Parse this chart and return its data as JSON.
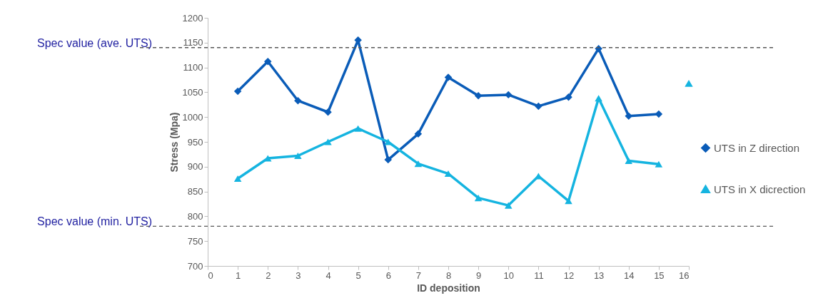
{
  "chart_data": {
    "type": "line",
    "xlabel": "ID deposition",
    "ylabel": "Stress (Mpa)",
    "xlim": [
      0,
      16
    ],
    "xticks": [
      0,
      1,
      2,
      3,
      4,
      5,
      6,
      7,
      8,
      9,
      10,
      11,
      12,
      13,
      14,
      15,
      16
    ],
    "ylim": [
      700,
      1200
    ],
    "yticks": [
      700,
      750,
      800,
      850,
      900,
      950,
      1000,
      1050,
      1100,
      1150,
      1200
    ],
    "grid": false,
    "legend": "right",
    "series": [
      {
        "name": "UTS  in Z direction",
        "color": "#0a5cb8",
        "marker": "diamond",
        "x": [
          1,
          2,
          3,
          4,
          5,
          6,
          7,
          8,
          9,
          10,
          11,
          12,
          13,
          14,
          15
        ],
        "values": [
          1052,
          1112,
          1033,
          1010,
          1155,
          914,
          966,
          1080,
          1043,
          1045,
          1022,
          1040,
          1138,
          1002,
          1006
        ]
      },
      {
        "name": "UTS in X dicrection",
        "color": "#15b4e0",
        "marker": "triangle",
        "x": [
          1,
          2,
          3,
          4,
          5,
          6,
          7,
          8,
          9,
          10,
          11,
          12,
          13,
          14,
          15
        ],
        "values": [
          876,
          917,
          922,
          950,
          977,
          950,
          906,
          886,
          837,
          822,
          881,
          831,
          1038,
          912,
          905
        ]
      },
      {
        "type": "scatter",
        "color": "#15b4e0",
        "marker": "triangle",
        "x": [
          16
        ],
        "values": [
          1068
        ]
      }
    ],
    "ref_lines": [
      {
        "axis": "y",
        "value": 1140,
        "label": "Spec value (ave. UTS)",
        "color": "#595959",
        "line_style": "dashed"
      },
      {
        "axis": "y",
        "value": 780,
        "label": "Spec value (min. UTS)",
        "color": "#595959",
        "line_style": "dashed"
      }
    ]
  }
}
